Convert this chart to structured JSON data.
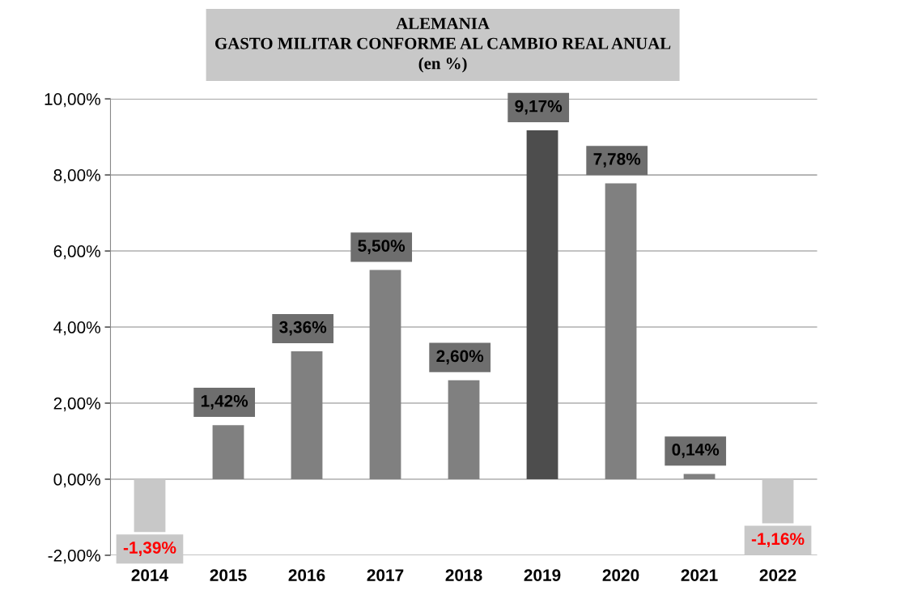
{
  "chart_data": {
    "type": "bar",
    "title": "ALEMANIA\nGASTO MILITAR CONFORME AL CAMBIO REAL ANUAL\n(en %)",
    "categories": [
      "2014",
      "2015",
      "2016",
      "2017",
      "2018",
      "2019",
      "2020",
      "2021",
      "2022"
    ],
    "values": [
      -1.39,
      1.42,
      3.36,
      5.5,
      2.6,
      9.17,
      7.78,
      0.14,
      -1.16
    ],
    "colors": [
      "#c8c8c8",
      "#808080",
      "#808080",
      "#808080",
      "#808080",
      "#4d4d4d",
      "#808080",
      "#808080",
      "#c8c8c8"
    ],
    "value_labels": [
      "-1,39%",
      "1,42%",
      "3,36%",
      "5,50%",
      "2,60%",
      "9,17%",
      "7,78%",
      "0,14%",
      "-1,16%"
    ],
    "ylim": [
      -2,
      10
    ],
    "yticks": [
      {
        "value": -2,
        "label": "-2,00%"
      },
      {
        "value": 0,
        "label": "0,00%"
      },
      {
        "value": 2,
        "label": "2,00%"
      },
      {
        "value": 4,
        "label": "4,00%"
      },
      {
        "value": 6,
        "label": "6,00%"
      },
      {
        "value": 8,
        "label": "8,00%"
      },
      {
        "value": 10,
        "label": "10,00%"
      }
    ],
    "grid": "y"
  }
}
